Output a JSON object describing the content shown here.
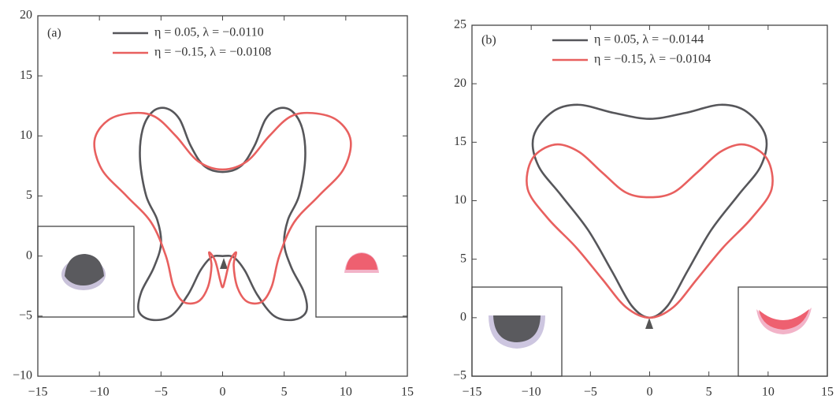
{
  "chart_data": [
    {
      "type": "line",
      "title": "(a)",
      "xlim": [
        -15,
        15
      ],
      "ylim": [
        -10,
        20
      ],
      "xticks": [
        {
          "value": -15,
          "label": "−15"
        },
        {
          "value": -10,
          "label": "−10"
        },
        {
          "value": -5,
          "label": "−5"
        },
        0,
        5,
        10,
        15
      ],
      "yticks": [
        {
          "value": -10,
          "label": "−10"
        },
        {
          "value": -5,
          "label": "−5"
        },
        0,
        5,
        10,
        15,
        20
      ],
      "series": [
        {
          "name": "η = 0.05, λ = −0.0110",
          "color": "#56565a",
          "x": [
            0,
            1.5,
            2.6,
            3.5,
            4.6,
            5.7,
            6.5,
            6.7,
            6.2,
            5.3,
            5,
            5.6,
            6.6,
            6.8,
            5.8,
            4.2,
            2.8,
            1.8,
            0.9,
            0,
            -0.9,
            -1.8,
            -2.8,
            -4.2,
            -5.8,
            -6.8,
            -6.6,
            -5.6,
            -5,
            -5.3,
            -6.2,
            -6.7,
            -6.5,
            -5.7,
            -4.6,
            -3.5,
            -2.6,
            -1.5
          ],
          "y": [
            7,
            7.5,
            9.2,
            11.4,
            12.3,
            12,
            10.5,
            8,
            5,
            3,
            1,
            -1,
            -3,
            -4.6,
            -5.3,
            -5,
            -3.2,
            -1.2,
            -0.1,
            0,
            -0.1,
            -1.2,
            -3.2,
            -5,
            -5.3,
            -4.6,
            -3,
            -1,
            1,
            3,
            5,
            8,
            10.5,
            12,
            12.3,
            11.4,
            9.2,
            7.5
          ]
        },
        {
          "name": "η = −0.15, λ = −0.0108",
          "color": "#e8605f",
          "x": [
            0,
            2,
            3.8,
            5.5,
            7.3,
            9.3,
            10.4,
            9.8,
            7.8,
            5.8,
            4.6,
            4,
            3.2,
            2,
            1.2,
            0.9,
            1.1,
            0.6,
            0.2,
            0,
            -0.2,
            -0.6,
            -1.1,
            -0.9,
            -1.2,
            -2,
            -3.2,
            -4,
            -4.6,
            -5.8,
            -7.8,
            -9.8,
            -10.4,
            -9.3,
            -7.3,
            -5.5,
            -3.8,
            -2
          ],
          "y": [
            7.2,
            7.9,
            10,
            11.6,
            11.9,
            11.3,
            9.6,
            7.2,
            5,
            2.8,
            0,
            -2.5,
            -3.8,
            -3.8,
            -2.6,
            -0.8,
            0.3,
            -0.4,
            -2,
            -2.6,
            -2,
            -0.4,
            0.3,
            -0.8,
            -2.6,
            -3.8,
            -3.8,
            -2.5,
            0,
            2.8,
            5,
            7.2,
            9.6,
            11.3,
            11.9,
            11.6,
            10,
            7.9
          ]
        }
      ]
    },
    {
      "type": "line",
      "title": "(b)",
      "xlim": [
        -15,
        15
      ],
      "ylim": [
        -5,
        25
      ],
      "xticks": [
        {
          "value": -15,
          "label": "−15"
        },
        {
          "value": -10,
          "label": "−10"
        },
        {
          "value": -5,
          "label": "−5"
        },
        0,
        5,
        10,
        15
      ],
      "yticks": [
        {
          "value": -5,
          "label": "−5"
        },
        0,
        5,
        10,
        15,
        20,
        25
      ],
      "series": [
        {
          "name": "η = 0.05, λ = −0.0144",
          "color": "#56565a",
          "x": [
            0,
            3,
            6,
            8.2,
            9.8,
            9.4,
            7.5,
            5.2,
            3.2,
            1.5,
            0,
            -1.5,
            -3.2,
            -5.2,
            -7.5,
            -9.4,
            -9.8,
            -8.2,
            -6,
            -3
          ],
          "y": [
            17,
            17.5,
            18.2,
            17.6,
            15.5,
            13,
            10.5,
            7.5,
            4,
            1,
            0,
            1,
            4,
            7.5,
            10.5,
            13,
            15.5,
            17.6,
            18.2,
            17.5
          ]
        },
        {
          "name": "η = −0.15, λ = −0.0104",
          "color": "#e8605f",
          "x": [
            0,
            2,
            4,
            6,
            8,
            9.9,
            10.3,
            8.6,
            6.2,
            4,
            2,
            0,
            -2,
            -4,
            -6.2,
            -8.6,
            -10.3,
            -9.9,
            -8,
            -6,
            -4,
            -2
          ],
          "y": [
            10.3,
            10.7,
            12.4,
            14.2,
            14.8,
            13.6,
            11,
            8.5,
            6,
            3.3,
            0.9,
            0,
            0.9,
            3.3,
            6,
            8.5,
            11,
            13.6,
            14.8,
            14.2,
            12.4,
            10.7
          ]
        }
      ]
    }
  ]
}
